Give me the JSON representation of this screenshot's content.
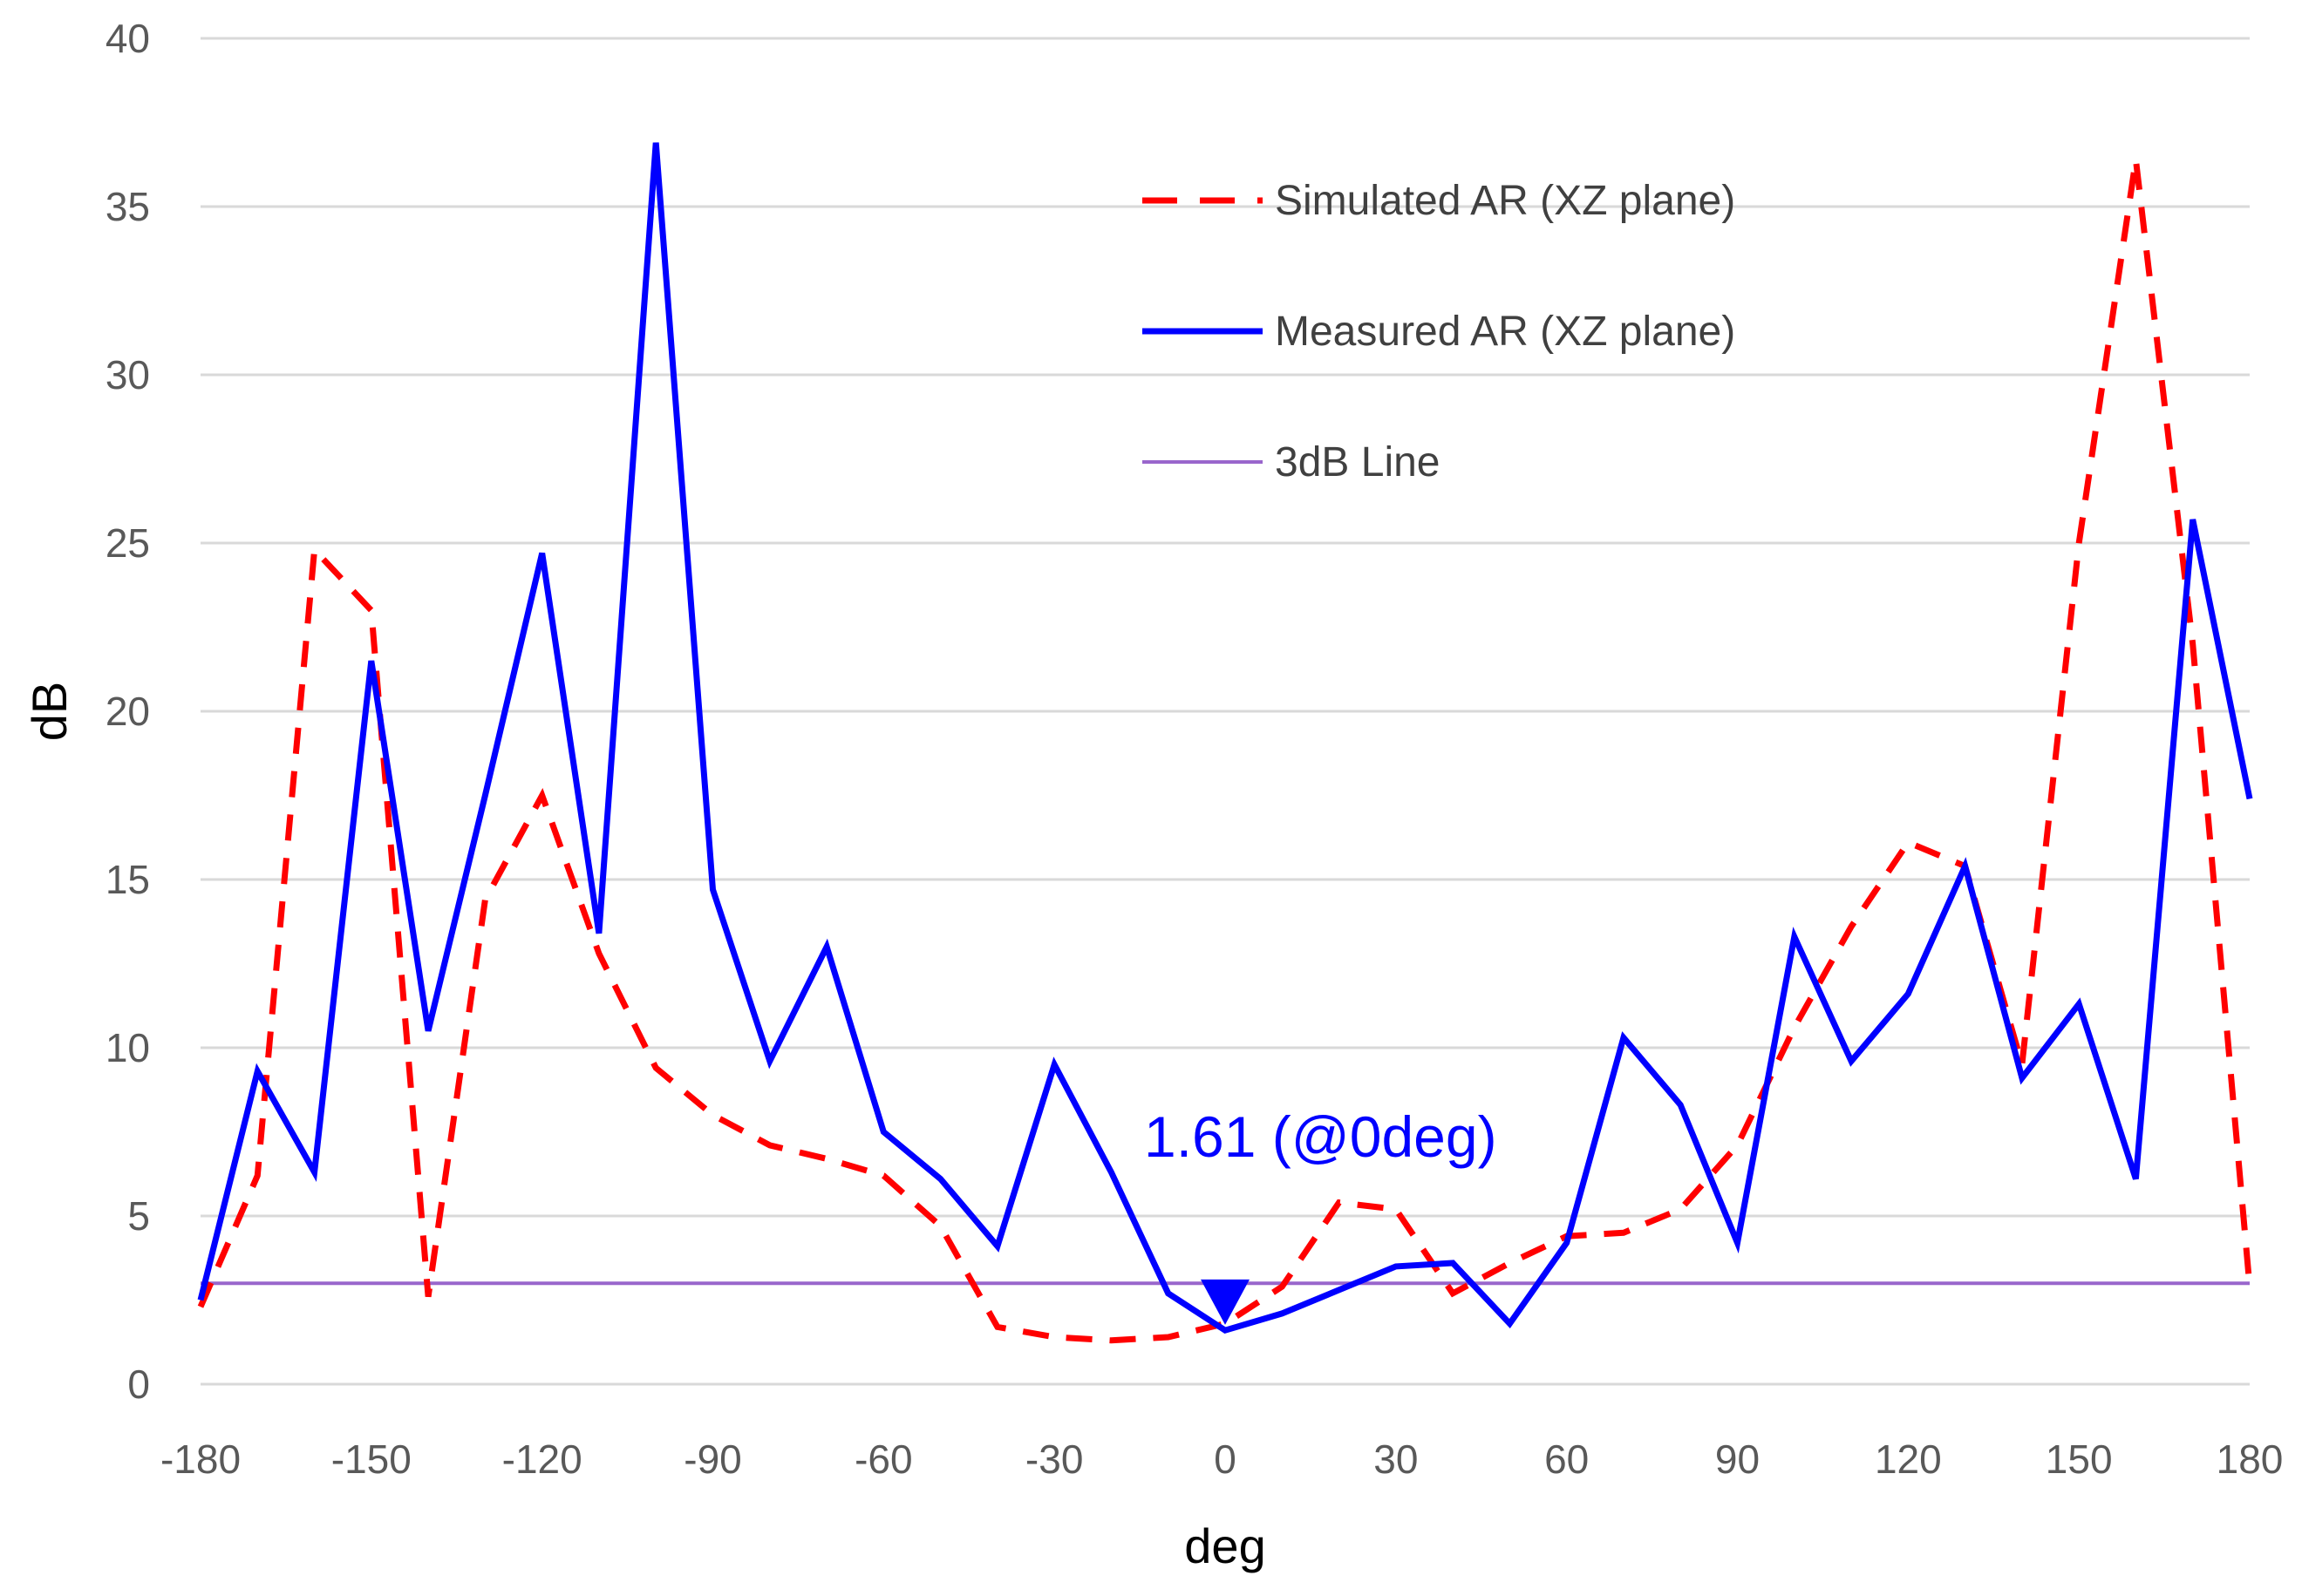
{
  "chart_data": {
    "type": "line",
    "title": "",
    "xlabel": "deg",
    "ylabel": "dB",
    "xlim": [
      -180,
      180
    ],
    "ylim": [
      0,
      40
    ],
    "x_ticks": [
      -180,
      -150,
      -120,
      -90,
      -60,
      -30,
      0,
      30,
      60,
      90,
      120,
      150,
      180
    ],
    "y_ticks": [
      0,
      5,
      10,
      15,
      20,
      25,
      30,
      35,
      40
    ],
    "grid": "horizontal",
    "legend_position": "top-right",
    "series": [
      {
        "name": "Simulated AR (XZ plane)",
        "color": "#ff0000",
        "style": "dashed",
        "x": [
          -180,
          -170,
          -160,
          -150,
          -140,
          -130,
          -120,
          -110,
          -100,
          -90,
          -80,
          -70,
          -60,
          -50,
          -40,
          -30,
          -20,
          -10,
          0,
          10,
          20,
          30,
          40,
          50,
          60,
          70,
          80,
          90,
          100,
          110,
          120,
          130,
          140,
          150,
          160,
          170,
          180
        ],
        "values": [
          2.3,
          6.2,
          24.8,
          23.0,
          2.6,
          14.4,
          17.5,
          12.8,
          9.4,
          8.0,
          7.1,
          6.7,
          6.2,
          4.7,
          1.7,
          1.4,
          1.3,
          1.4,
          1.8,
          2.9,
          5.4,
          5.2,
          2.7,
          3.6,
          4.4,
          4.5,
          5.2,
          7.1,
          10.6,
          13.6,
          16.1,
          15.4,
          9.5,
          25.0,
          36.4,
          22.0,
          2.9
        ]
      },
      {
        "name": "Measured AR (XZ plane)",
        "color": "#0000ff",
        "style": "solid",
        "x": [
          -180,
          -170,
          -160,
          -150,
          -140,
          -130,
          -120,
          -110,
          -100,
          -90,
          -80,
          -70,
          -60,
          -50,
          -40,
          -30,
          -20,
          -10,
          0,
          10,
          20,
          30,
          40,
          50,
          60,
          70,
          80,
          90,
          100,
          110,
          120,
          130,
          140,
          150,
          160,
          170,
          180
        ],
        "values": [
          2.5,
          9.3,
          6.3,
          21.5,
          10.5,
          17.5,
          24.7,
          13.4,
          36.9,
          14.7,
          9.6,
          13.0,
          7.5,
          6.1,
          4.1,
          9.5,
          6.3,
          2.7,
          1.6,
          2.1,
          2.8,
          3.5,
          3.6,
          1.8,
          4.2,
          10.3,
          8.3,
          4.2,
          13.3,
          9.6,
          11.6,
          15.4,
          9.1,
          11.3,
          6.1,
          25.7,
          17.4
        ]
      },
      {
        "name": "3dB Line",
        "color": "#9966cc",
        "style": "solid-thin",
        "x": [
          -180,
          180
        ],
        "values": [
          3,
          3
        ]
      }
    ],
    "annotations": [
      {
        "text": "1.61 (@0deg)",
        "x": 0,
        "y": 1.61,
        "color": "#0000ff",
        "marker": "triangle-down"
      }
    ]
  }
}
